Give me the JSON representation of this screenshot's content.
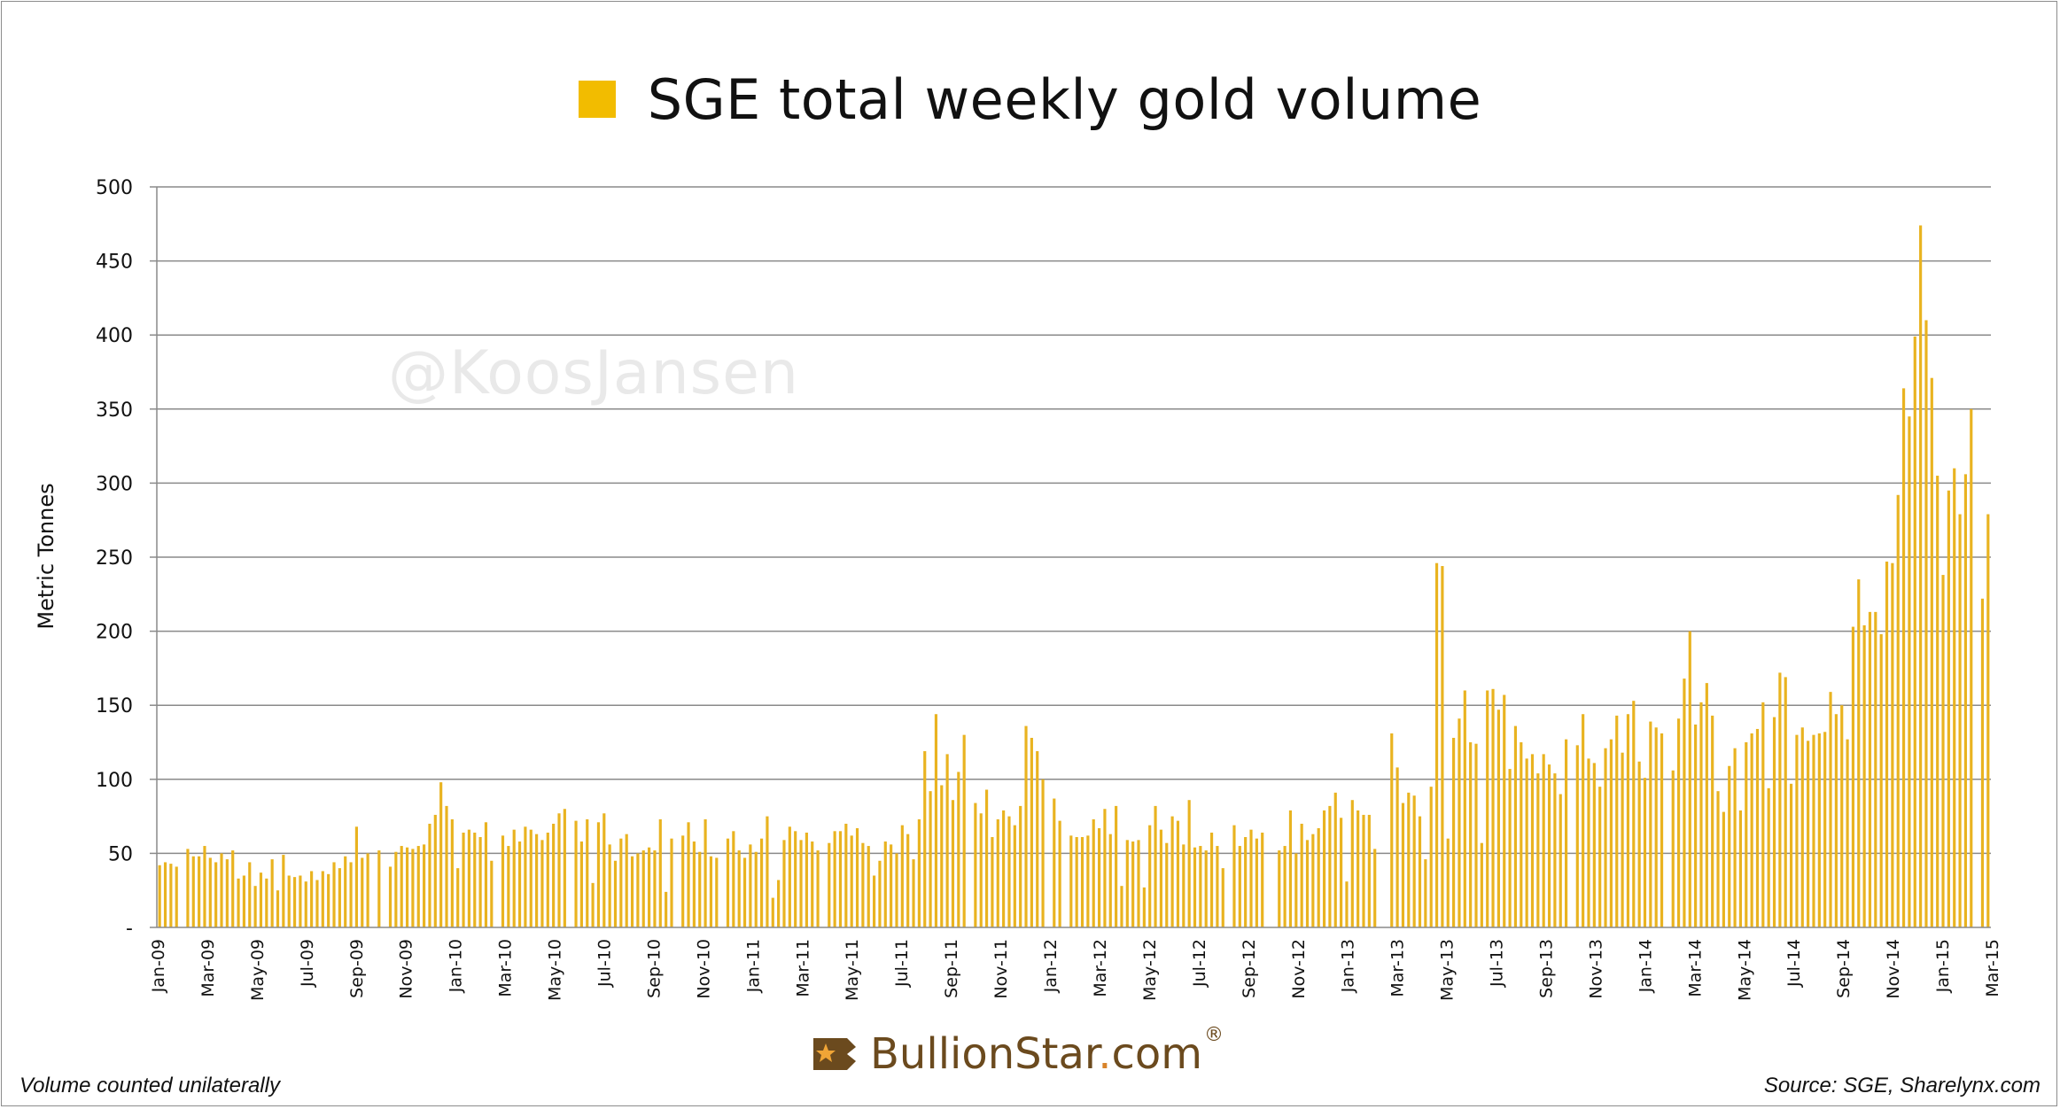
{
  "legend": {
    "label": "SGE total weekly gold volume",
    "swatch_color": "#F2BC00"
  },
  "watermark": "@KoosJansen",
  "footer": {
    "note": "Volume counted unilaterally",
    "source": "Source: SGE, Sharelynx.com",
    "logo": {
      "name": "BullionStar",
      "dot": ".",
      "domain": "com",
      "reg": "®"
    }
  },
  "chart_data": {
    "type": "bar",
    "title": "SGE total weekly gold volume",
    "ylabel": "Metric Tonnes",
    "xlabel": "",
    "ylim": [
      0,
      500
    ],
    "y_ticks": [
      {
        "v": 0,
        "label": "-"
      },
      {
        "v": 50,
        "label": "50"
      },
      {
        "v": 100,
        "label": "100"
      },
      {
        "v": 150,
        "label": "150"
      },
      {
        "v": 200,
        "label": "200"
      },
      {
        "v": 250,
        "label": "250"
      },
      {
        "v": 300,
        "label": "300"
      },
      {
        "v": 350,
        "label": "350"
      },
      {
        "v": 400,
        "label": "400"
      },
      {
        "v": 450,
        "label": "450"
      },
      {
        "v": 500,
        "label": "500"
      }
    ],
    "x_ticks": [
      "Jan-09",
      "Mar-09",
      "May-09",
      "Jul-09",
      "Sep-09",
      "Nov-09",
      "Jan-10",
      "Mar-10",
      "May-10",
      "Jul-10",
      "Sep-10",
      "Nov-10",
      "Jan-11",
      "Mar-11",
      "May-11",
      "Jul-11",
      "Sep-11",
      "Nov-11",
      "Jan-12",
      "Mar-12",
      "May-12",
      "Jul-12",
      "Sep-12",
      "Nov-12",
      "Jan-13",
      "Mar-13",
      "May-13",
      "Jul-13",
      "Sep-13",
      "Nov-13",
      "Jan-14",
      "Mar-14",
      "May-14",
      "Jul-14",
      "Sep-14",
      "Nov-14",
      "Jan-15",
      "Mar-15"
    ],
    "grid": true,
    "legend_position": "top-center",
    "bar_color": "#E9B320",
    "values": [
      42,
      44,
      43,
      41,
      0,
      53,
      48,
      48,
      55,
      47,
      44,
      50,
      46,
      52,
      33,
      35,
      44,
      28,
      37,
      33,
      46,
      25,
      49,
      35,
      34,
      35,
      31,
      38,
      32,
      38,
      36,
      44,
      40,
      48,
      44,
      68,
      47,
      50,
      0,
      52,
      0,
      41,
      51,
      55,
      54,
      53,
      55,
      56,
      70,
      76,
      98,
      82,
      73,
      40,
      64,
      66,
      64,
      61,
      71,
      45,
      0,
      62,
      55,
      66,
      58,
      68,
      66,
      63,
      59,
      64,
      70,
      77,
      80,
      0,
      72,
      58,
      73,
      30,
      71,
      77,
      56,
      45,
      60,
      63,
      48,
      50,
      52,
      54,
      52,
      73,
      24,
      60,
      0,
      62,
      71,
      58,
      51,
      73,
      48,
      47,
      0,
      60,
      65,
      52,
      47,
      56,
      51,
      60,
      75,
      20,
      32,
      59,
      68,
      65,
      59,
      64,
      58,
      52,
      0,
      57,
      65,
      65,
      70,
      62,
      67,
      57,
      55,
      35,
      45,
      58,
      56,
      50,
      69,
      63,
      46,
      73,
      119,
      92,
      144,
      96,
      117,
      86,
      105,
      130,
      0,
      84,
      77,
      93,
      61,
      73,
      79,
      75,
      69,
      82,
      136,
      128,
      119,
      100,
      0,
      87,
      72,
      0,
      62,
      61,
      61,
      62,
      73,
      67,
      80,
      63,
      82,
      28,
      59,
      58,
      59,
      27,
      69,
      82,
      66,
      57,
      75,
      72,
      56,
      86,
      54,
      55,
      52,
      64,
      55,
      40,
      0,
      69,
      55,
      61,
      66,
      60,
      64,
      0,
      0,
      52,
      55,
      79,
      50,
      70,
      59,
      63,
      67,
      79,
      82,
      91,
      74,
      31,
      86,
      79,
      76,
      76,
      53,
      0,
      0,
      131,
      108,
      84,
      91,
      89,
      75,
      46,
      95,
      246,
      244,
      60,
      128,
      141,
      160,
      125,
      124,
      57,
      160,
      161,
      147,
      157,
      107,
      136,
      125,
      114,
      117,
      104,
      117,
      110,
      104,
      90,
      127,
      0,
      123,
      144,
      114,
      111,
      95,
      121,
      127,
      143,
      118,
      144,
      153,
      112,
      101,
      139,
      135,
      131,
      0,
      106,
      141,
      168,
      200,
      137,
      152,
      165,
      143,
      92,
      78,
      109,
      121,
      79,
      125,
      131,
      134,
      152,
      94,
      142,
      172,
      169,
      97,
      130,
      135,
      126,
      130,
      131,
      132,
      159,
      144,
      150,
      127,
      203,
      235,
      204,
      213,
      213,
      198,
      247,
      246,
      292,
      364,
      345,
      399,
      474,
      410,
      371,
      305,
      238,
      295,
      310,
      279,
      306,
      350,
      0,
      222,
      279
    ]
  }
}
